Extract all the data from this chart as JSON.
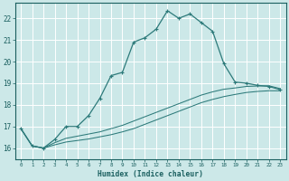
{
  "title": "",
  "xlabel": "Humidex (Indice chaleur)",
  "bg_color": "#cce8e8",
  "grid_color": "#ffffff",
  "line_color": "#2d7a7a",
  "xlim": [
    -0.5,
    23.5
  ],
  "ylim": [
    15.5,
    22.7
  ],
  "yticks": [
    16,
    17,
    18,
    19,
    20,
    21,
    22
  ],
  "xticks": [
    0,
    1,
    2,
    3,
    4,
    5,
    6,
    7,
    8,
    9,
    10,
    11,
    12,
    13,
    14,
    15,
    16,
    17,
    18,
    19,
    20,
    21,
    22,
    23
  ],
  "main_line_x": [
    0,
    1,
    2,
    3,
    4,
    5,
    6,
    7,
    8,
    9,
    10,
    11,
    12,
    13,
    14,
    15,
    16,
    17,
    18,
    19,
    20,
    21,
    22,
    23
  ],
  "main_line_y": [
    16.9,
    16.1,
    16.0,
    16.4,
    17.0,
    17.0,
    17.5,
    18.3,
    19.35,
    19.5,
    20.9,
    21.1,
    21.5,
    22.35,
    22.0,
    22.2,
    21.8,
    21.4,
    19.9,
    19.05,
    19.0,
    18.9,
    18.85,
    18.7
  ],
  "line2_x": [
    0,
    1,
    2,
    3,
    4,
    5,
    6,
    7,
    8,
    9,
    10,
    11,
    12,
    13,
    14,
    15,
    16,
    17,
    18,
    19,
    20,
    21,
    22,
    23
  ],
  "line2_y": [
    16.9,
    16.1,
    16.0,
    16.25,
    16.45,
    16.55,
    16.65,
    16.75,
    16.9,
    17.05,
    17.25,
    17.45,
    17.65,
    17.85,
    18.05,
    18.25,
    18.45,
    18.6,
    18.72,
    18.78,
    18.85,
    18.87,
    18.88,
    18.75
  ],
  "line3_x": [
    0,
    1,
    2,
    3,
    4,
    5,
    6,
    7,
    8,
    9,
    10,
    11,
    12,
    13,
    14,
    15,
    16,
    17,
    18,
    19,
    20,
    21,
    22,
    23
  ],
  "line3_y": [
    16.9,
    16.1,
    16.0,
    16.15,
    16.28,
    16.35,
    16.42,
    16.52,
    16.62,
    16.75,
    16.9,
    17.1,
    17.3,
    17.5,
    17.7,
    17.9,
    18.1,
    18.25,
    18.38,
    18.48,
    18.57,
    18.62,
    18.65,
    18.65
  ]
}
